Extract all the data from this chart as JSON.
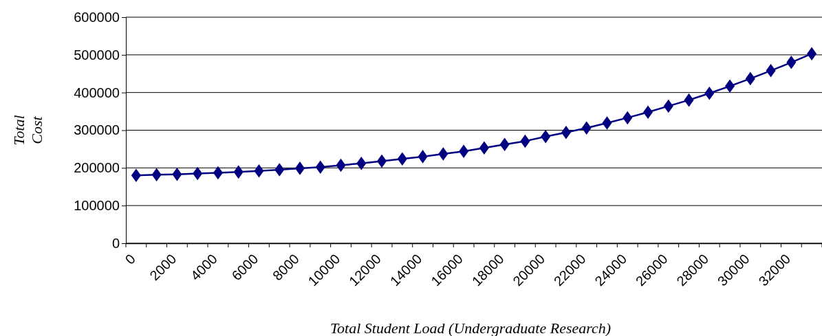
{
  "chart_data": {
    "type": "line",
    "xlabel": "Total Student Load (Undergraduate Research)",
    "ylabel": "Total Cost",
    "categories": [
      "0",
      null,
      "2000",
      null,
      "4000",
      null,
      "6000",
      null,
      "8000",
      null,
      "10000",
      null,
      "12000",
      null,
      "14000",
      null,
      "16000",
      null,
      "18000",
      null,
      "20000",
      null,
      "22000",
      null,
      "24000",
      null,
      "26000",
      null,
      "28000",
      null,
      "30000",
      null,
      "32000",
      null
    ],
    "series": [
      {
        "color": "#000080",
        "values": [
          180000,
          182000,
          183000,
          185000,
          187000,
          189000,
          192000,
          195000,
          199000,
          202000,
          207000,
          212000,
          218000,
          224000,
          230000,
          237000,
          244000,
          253000,
          262000,
          271000,
          283000,
          294000,
          306000,
          319000,
          333000,
          348000,
          364000,
          380000,
          398000,
          417000,
          437000,
          458000,
          480000,
          503000
        ]
      }
    ],
    "ylim": [
      0,
      600000
    ],
    "yticks": [
      0,
      100000,
      200000,
      300000,
      400000,
      500000,
      600000
    ],
    "grid": "y",
    "marker": "diamond",
    "line_style": "solid"
  }
}
